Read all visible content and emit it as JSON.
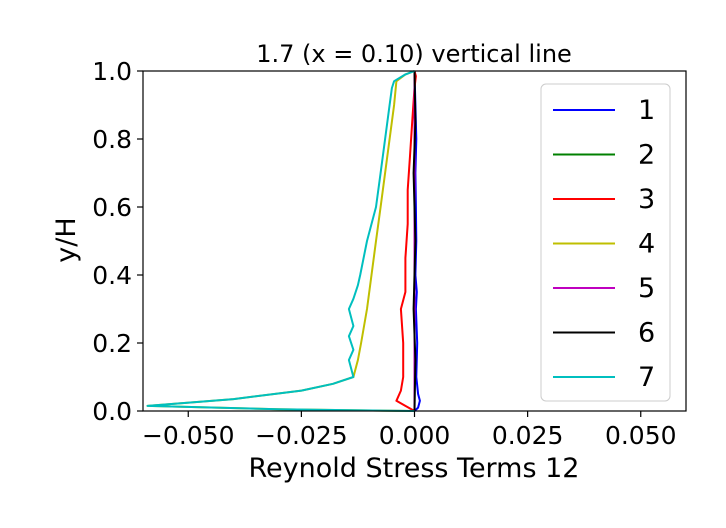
{
  "chart_data": {
    "type": "line",
    "title": "1.7 (x = 0.10) vertical line",
    "xlabel": "Reynold Stress Terms 12",
    "ylabel": "y/H",
    "xlim": [
      -0.06,
      0.06
    ],
    "ylim": [
      0.0,
      1.0
    ],
    "xticks": [
      -0.05,
      -0.025,
      0.0,
      0.025,
      0.05
    ],
    "xtick_labels": [
      "−0.050",
      "−0.025",
      "0.000",
      "0.025",
      "0.050"
    ],
    "yticks": [
      0.0,
      0.2,
      0.4,
      0.6,
      0.8,
      1.0
    ],
    "ytick_labels": [
      "0.0",
      "0.2",
      "0.4",
      "0.6",
      "0.8",
      "1.0"
    ],
    "grid": false,
    "legend_position": "right",
    "series": [
      {
        "name": "1",
        "color": "#0000ff",
        "x": [
          0.0,
          0.0008,
          0.0012,
          0.0008,
          0.0004,
          0.0006,
          0.0003,
          0.0005,
          0.0002,
          0.0004,
          0.0003,
          0.0002,
          0.0004,
          0.0002,
          0.0
        ],
        "y": [
          0.0,
          0.01,
          0.03,
          0.05,
          0.1,
          0.2,
          0.3,
          0.35,
          0.4,
          0.5,
          0.6,
          0.7,
          0.8,
          0.9,
          1.0
        ]
      },
      {
        "name": "2",
        "color": "#008000",
        "x": [
          0.0,
          0.0,
          0.0,
          0.0
        ],
        "y": [
          0.0,
          0.3,
          0.7,
          1.0
        ]
      },
      {
        "name": "3",
        "color": "#ff0000",
        "x": [
          0.0,
          -0.002,
          -0.004,
          -0.003,
          -0.0025,
          -0.0025,
          -0.0025,
          -0.003,
          -0.002,
          -0.002,
          -0.0015,
          -0.0015,
          -0.001,
          -0.0005,
          0.0,
          0.0003,
          0.0
        ],
        "y": [
          0.0,
          0.015,
          0.03,
          0.06,
          0.1,
          0.15,
          0.2,
          0.3,
          0.35,
          0.45,
          0.55,
          0.65,
          0.75,
          0.85,
          0.95,
          0.985,
          1.0
        ]
      },
      {
        "name": "4",
        "color": "#bfbf00",
        "x": [
          0.0,
          -0.03,
          -0.059,
          -0.04,
          -0.025,
          -0.018,
          -0.0135,
          -0.0125,
          -0.0118,
          -0.0105,
          -0.0095,
          -0.0085,
          -0.0075,
          -0.0065,
          -0.0055,
          -0.0045,
          -0.004,
          -0.002,
          0.0
        ],
        "y": [
          0.0,
          0.005,
          0.015,
          0.035,
          0.06,
          0.08,
          0.1,
          0.15,
          0.2,
          0.3,
          0.4,
          0.5,
          0.6,
          0.7,
          0.8,
          0.9,
          0.97,
          0.99,
          1.0
        ]
      },
      {
        "name": "5",
        "color": "#bf00bf",
        "x": [
          0.0,
          0.0,
          0.0
        ],
        "y": [
          0.0,
          0.5,
          1.0
        ]
      },
      {
        "name": "6",
        "color": "#000000",
        "x": [
          0.0,
          0.0002,
          -0.0002,
          0.0002,
          -0.0002,
          0.0002,
          0.0
        ],
        "y": [
          0.0,
          0.15,
          0.3,
          0.5,
          0.7,
          0.85,
          1.0
        ]
      },
      {
        "name": "7",
        "color": "#00bfbf",
        "x": [
          0.0,
          -0.03,
          -0.059,
          -0.04,
          -0.025,
          -0.018,
          -0.0135,
          -0.0145,
          -0.0135,
          -0.0145,
          -0.0135,
          -0.0145,
          -0.0135,
          -0.0125,
          -0.012,
          -0.0105,
          -0.0095,
          -0.0085,
          -0.0075,
          -0.0065,
          -0.0055,
          -0.005,
          -0.0045,
          -0.002,
          0.0
        ],
        "y": [
          0.0,
          0.005,
          0.015,
          0.035,
          0.06,
          0.08,
          0.1,
          0.15,
          0.18,
          0.22,
          0.25,
          0.3,
          0.33,
          0.37,
          0.4,
          0.5,
          0.55,
          0.6,
          0.7,
          0.8,
          0.9,
          0.95,
          0.97,
          0.99,
          1.0
        ]
      }
    ]
  }
}
